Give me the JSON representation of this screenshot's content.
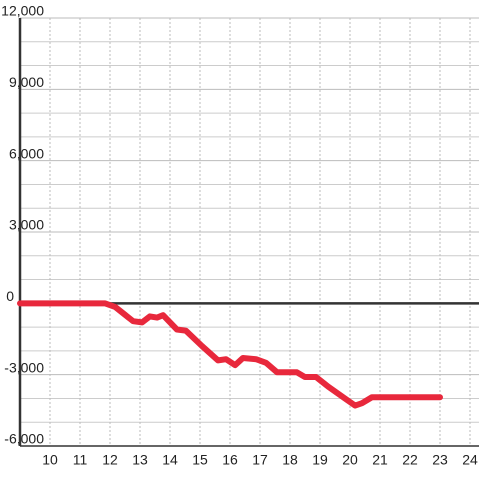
{
  "chart_data": {
    "type": "line",
    "x": [
      9.0,
      11.83,
      12.17,
      12.77,
      13.07,
      13.33,
      13.57,
      13.77,
      14.23,
      14.53,
      15.07,
      15.6,
      15.87,
      16.17,
      16.43,
      16.87,
      17.2,
      17.57,
      18.23,
      18.5,
      18.87,
      19.27,
      19.83,
      20.17,
      20.4,
      20.73,
      23.0
    ],
    "series": [
      {
        "color": "#e8283c",
        "values": [
          0,
          0,
          -150,
          -750,
          -800,
          -550,
          -600,
          -500,
          -1100,
          -1150,
          -1800,
          -2400,
          -2350,
          -2600,
          -2300,
          -2350,
          -2500,
          -2900,
          -2900,
          -3100,
          -3100,
          -3500,
          -4000,
          -4300,
          -4200,
          -3950,
          -3950
        ]
      }
    ],
    "xlim": [
      9,
      24.3
    ],
    "xticks": [
      10,
      11,
      12,
      13,
      14,
      15,
      16,
      17,
      18,
      19,
      20,
      21,
      22,
      23,
      24
    ],
    "ylim": [
      -6000,
      12000
    ],
    "yticks": [
      {
        "value": -6000,
        "label": "-6,000"
      },
      {
        "value": -3000,
        "label": "-3,000"
      },
      0,
      {
        "value": 3000,
        "label": "3,000"
      },
      {
        "value": 6000,
        "label": "6,000"
      },
      {
        "value": 9000,
        "label": "9,000"
      },
      {
        "value": 12000,
        "label": "12,000"
      }
    ],
    "ygrid": [
      -5000,
      -4000,
      -2000,
      -1000,
      1000,
      2000,
      4000,
      5000,
      7000,
      8000,
      10000,
      11000
    ],
    "grid": true
  }
}
